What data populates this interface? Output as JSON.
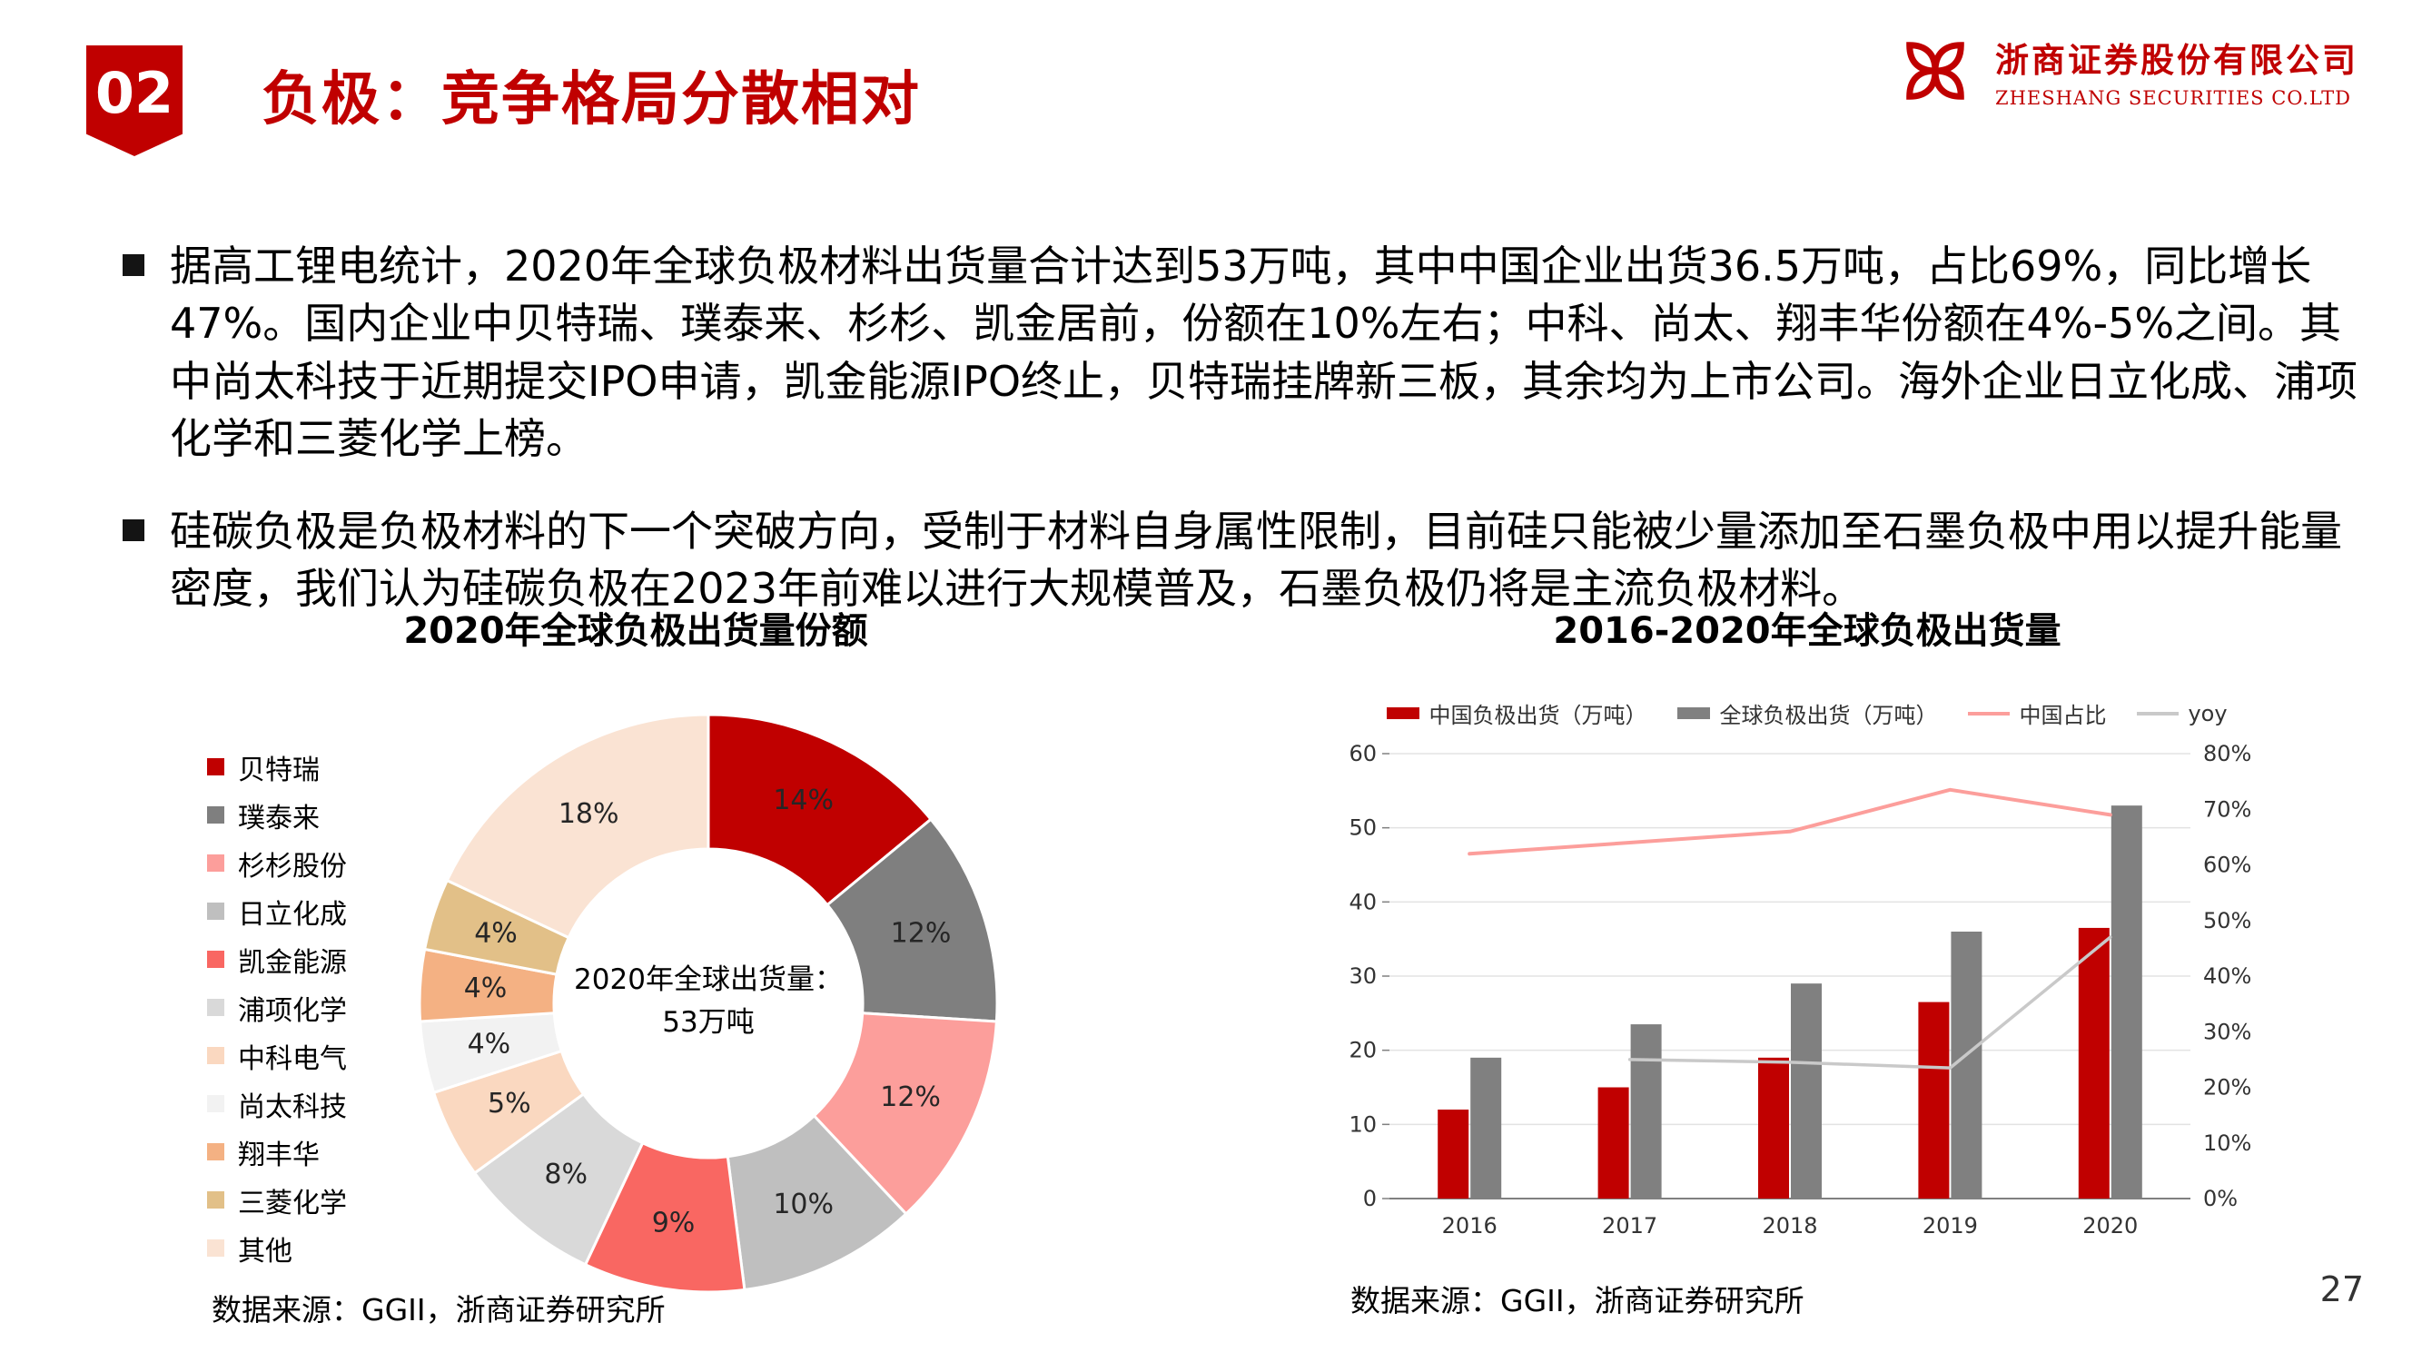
{
  "page": {
    "badge": "02",
    "title": "负极：竞争格局分散相对",
    "page_number": "27"
  },
  "logo": {
    "company_cn": "浙商证券股份有限公司",
    "company_en": "ZHESHANG SECURITIES CO.LTD"
  },
  "bullets": [
    "据高工锂电统计，2020年全球负极材料出货量合计达到53万吨，其中中国企业出货36.5万吨，占比69%，同比增长47%。国内企业中贝特瑞、璞泰来、杉杉、凯金居前，份额在10%左右；中科、尚太、翔丰华份额在4%-5%之间。其中尚太科技于近期提交IPO申请，凯金能源IPO终止，贝特瑞挂牌新三板，其余均为上市公司。海外企业日立化成、浦项化学和三菱化学上榜。",
    "硅碳负极是负极材料的下一个突破方向，受制于材料自身属性限制，目前硅只能被少量添加至石墨负极中用以提升能量密度，我们认为硅碳负极在2023年前难以进行大规模普及，石墨负极仍将是主流负极材料。"
  ],
  "chart_data": [
    {
      "type": "pie",
      "donut": true,
      "title": "2020年全球负极出货量份额",
      "center_line1": "2020年全球出货量：",
      "center_line2": "53万吨",
      "segments": [
        {
          "label": "贝特瑞",
          "value": 14,
          "color": "#C00000"
        },
        {
          "label": "璞泰来",
          "value": 12,
          "color": "#7F7F7F"
        },
        {
          "label": "杉杉股份",
          "value": 12,
          "color": "#FC9E9B"
        },
        {
          "label": "日立化成",
          "value": 10,
          "color": "#BFBFBF"
        },
        {
          "label": "凯金能源",
          "value": 9,
          "color": "#F96762"
        },
        {
          "label": "浦项化学",
          "value": 8,
          "color": "#D9D9D9"
        },
        {
          "label": "中科电气",
          "value": 5,
          "color": "#FAD8C0"
        },
        {
          "label": "尚太科技",
          "value": 4,
          "color": "#F2F2F2"
        },
        {
          "label": "翔丰华",
          "value": 4,
          "color": "#F4B183"
        },
        {
          "label": "三菱化学",
          "value": 4,
          "color": "#E2C088"
        },
        {
          "label": "其他",
          "value": 18,
          "color": "#FAE3D3"
        }
      ],
      "source": "数据来源：GGII，浙商证券研究所"
    },
    {
      "type": "bar",
      "title": "2016-2020年全球负极出货量",
      "categories": [
        "2016",
        "2017",
        "2018",
        "2019",
        "2020"
      ],
      "series": [
        {
          "name": "中国负极出货（万吨）",
          "color": "#C00000",
          "values": [
            12,
            15,
            19,
            26.5,
            36.5
          ]
        },
        {
          "name": "全球负极出货（万吨）",
          "color": "#808080",
          "values": [
            19,
            23.5,
            29,
            36,
            53
          ]
        }
      ],
      "lines": [
        {
          "name": "中国占比",
          "color": "#FC9E9B",
          "axis": "right",
          "values": [
            62,
            64,
            66,
            73.5,
            69
          ]
        },
        {
          "name": "yoy",
          "color": "#C9C9C9",
          "axis": "right",
          "values": [
            null,
            25,
            24.5,
            23.5,
            47
          ]
        }
      ],
      "ylim_left": [
        0,
        60
      ],
      "ylim_right": [
        0,
        80
      ],
      "left_ticks": [
        "0",
        "10",
        "20",
        "30",
        "40",
        "50",
        "60"
      ],
      "right_ticks": [
        "0%",
        "10%",
        "20%",
        "30%",
        "40%",
        "50%",
        "60%",
        "70%",
        "80%"
      ],
      "grid": true,
      "legend_position": "top",
      "source": "数据来源：GGII，浙商证券研究所"
    }
  ]
}
